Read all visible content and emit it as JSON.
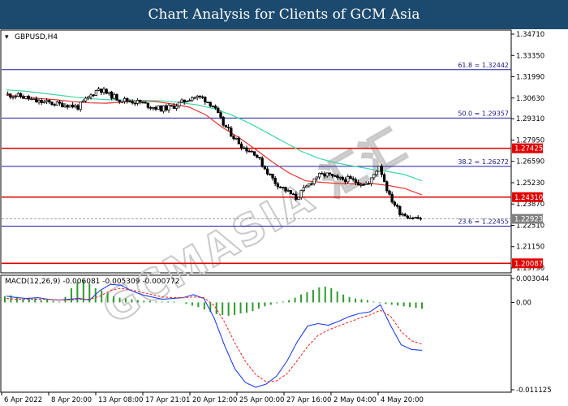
{
  "header": {
    "title": "Chart Analysis for Clients of GCM Asia"
  },
  "colors": {
    "header_bg": "#1c4a6e",
    "bull_candle": "#ffffff",
    "bear_candle": "#000000",
    "red_line": "#e8322d",
    "green_line": "#3ad79d",
    "fib_line": "#1a1aa8",
    "sr_line": "#e00000",
    "macd_hist": "#2e9a2e",
    "macd_line": "#1f3ee6",
    "signal_line": "#e8322d"
  },
  "watermark": "GCMASIA 汇汇",
  "chart_data": [
    {
      "type": "candlestick",
      "symbol_label": "GBPUSD,H4",
      "x_tick_labels": [
        "6 Apr 2022",
        "8 Apr 20:00",
        "13 Apr 08:00",
        "17 Apr 21:01",
        "20 Apr 12:00",
        "25 Apr 00:00",
        "27 Apr 16:00",
        "2 May 04:00",
        "4 May 20:00"
      ],
      "y_tick_labels": [
        "1.34710",
        "1.33350",
        "1.31990",
        "1.30630",
        "1.29310",
        "1.27950",
        "1.26590",
        "1.25230",
        "1.23870",
        "1.22510",
        "1.21150",
        "1.19790"
      ],
      "ylim": [
        1.1979,
        1.3471
      ],
      "price_levels": [
        {
          "label": "61.8 = 1.32442",
          "value": 1.32442,
          "kind": "fibonacci"
        },
        {
          "label": "50.0 = 1.29357",
          "value": 1.29357,
          "kind": "fibonacci"
        },
        {
          "label": "38.2 = 1.26272",
          "value": 1.26272,
          "kind": "fibonacci"
        },
        {
          "label": "23.6 = 1.22455",
          "value": 1.22455,
          "kind": "fibonacci"
        },
        {
          "label": "1.27425",
          "value": 1.27425,
          "kind": "resistance"
        },
        {
          "label": "1.24310",
          "value": 1.2431,
          "kind": "support"
        },
        {
          "label": "1.20087",
          "value": 1.20087,
          "kind": "support"
        }
      ],
      "current_price_label": "1.22923",
      "current_price": 1.22923,
      "close_path": [
        1.3085,
        1.308,
        1.3065,
        1.304,
        1.3035,
        1.3025,
        1.302,
        1.3005,
        1.3065,
        1.3125,
        1.3085,
        1.3055,
        1.3045,
        1.3035,
        1.301,
        1.2995,
        1.3005,
        1.3035,
        1.307,
        1.3065,
        1.3015,
        1.2895,
        1.2815,
        1.2745,
        1.2715,
        1.2615,
        1.2525,
        1.2475,
        1.2425,
        1.2495,
        1.2565,
        1.2575,
        1.2545,
        1.2545,
        1.2525,
        1.2515,
        1.2635,
        1.2435,
        1.2335,
        1.2305,
        1.2292
      ],
      "moving_averages": [
        {
          "name": "red",
          "values": [
            1.308,
            1.3074,
            1.306,
            1.3052,
            1.304,
            1.3032,
            1.303,
            1.3038,
            1.3045,
            1.304,
            1.3025,
            1.3005,
            1.2955,
            1.2875,
            1.281,
            1.2735,
            1.2655,
            1.2585,
            1.2535,
            1.2525,
            1.2518,
            1.2515,
            1.2518,
            1.2505,
            1.2485,
            1.2445
          ]
        },
        {
          "name": "green",
          "values": [
            1.3115,
            1.3108,
            1.3095,
            1.3082,
            1.3068,
            1.3058,
            1.3052,
            1.305,
            1.3048,
            1.3045,
            1.3035,
            1.302,
            1.2995,
            1.2955,
            1.2905,
            1.2845,
            1.2785,
            1.2725,
            1.268,
            1.265,
            1.263,
            1.261,
            1.2595,
            1.2575,
            1.2535
          ]
        }
      ]
    },
    {
      "type": "macd",
      "label": "MACD(12,26,9) -0.006081 -0.005309 -0.000772",
      "y_tick_labels": [
        "0.003044",
        "0.00",
        "-0.011125"
      ],
      "ylim": [
        -0.011125,
        0.003044
      ],
      "histogram": [
        0.0008,
        0.0009,
        0.0007,
        0.0004,
        0.0006,
        0.0005,
        0.0003,
        0.0004,
        0.0002,
        0.0001,
        0.0007,
        0.0018,
        0.0026,
        0.0028,
        0.0024,
        0.0018,
        0.0015,
        0.0012,
        0.0008,
        0.0006,
        0.0005,
        0.0004,
        0.0003,
        0.0002,
        0.0002,
        0.0001,
        0.0001,
        0.0001,
        0.0001,
        0.0,
        -0.0002,
        -0.0004,
        -0.0006,
        -0.0009,
        -0.0012,
        -0.0015,
        -0.0016,
        -0.0017,
        -0.0016,
        -0.0014,
        -0.0013,
        -0.0011,
        -0.0008,
        -0.0005,
        -0.0003,
        -0.0001,
        0.0001,
        0.0003,
        0.0006,
        0.001,
        0.0013,
        0.0016,
        0.0019,
        0.002,
        0.0018,
        0.0014,
        0.001,
        0.0007,
        0.0005,
        0.0004,
        0.0003,
        0.0001,
        -0.0001,
        -0.0002,
        -0.0003,
        -0.0004,
        -0.0005,
        -0.0006,
        -0.0007,
        -0.0008
      ],
      "macd_line": [
        0.0008,
        0.0006,
        0.0005,
        0.0006,
        0.0004,
        0.0003,
        0.0004,
        0.0005,
        0.0003,
        0.0015,
        0.0023,
        0.0022,
        0.0015,
        0.001,
        0.0007,
        0.0004,
        0.0005,
        0.0006,
        0.001,
        0.0005,
        -0.002,
        -0.0055,
        -0.0085,
        -0.0102,
        -0.0108,
        -0.0104,
        -0.0094,
        -0.0075,
        -0.005,
        -0.003,
        -0.0027,
        -0.0029,
        -0.0024,
        -0.0018,
        -0.0014,
        -0.0012,
        -0.0003,
        -0.003,
        -0.0054,
        -0.006,
        -0.0061
      ],
      "signal_line": [
        0.0005,
        0.0004,
        0.0004,
        0.0004,
        0.0004,
        0.0003,
        0.0003,
        0.0004,
        0.0004,
        0.0008,
        0.0015,
        0.0018,
        0.0016,
        0.0013,
        0.001,
        0.0007,
        0.0006,
        0.0006,
        0.0007,
        0.0006,
        -0.0004,
        -0.0025,
        -0.0052,
        -0.0075,
        -0.0092,
        -0.0101,
        -0.01,
        -0.0091,
        -0.0074,
        -0.0056,
        -0.0042,
        -0.0035,
        -0.003,
        -0.0025,
        -0.002,
        -0.0016,
        -0.001,
        -0.0018,
        -0.0037,
        -0.0049,
        -0.0053
      ]
    }
  ]
}
